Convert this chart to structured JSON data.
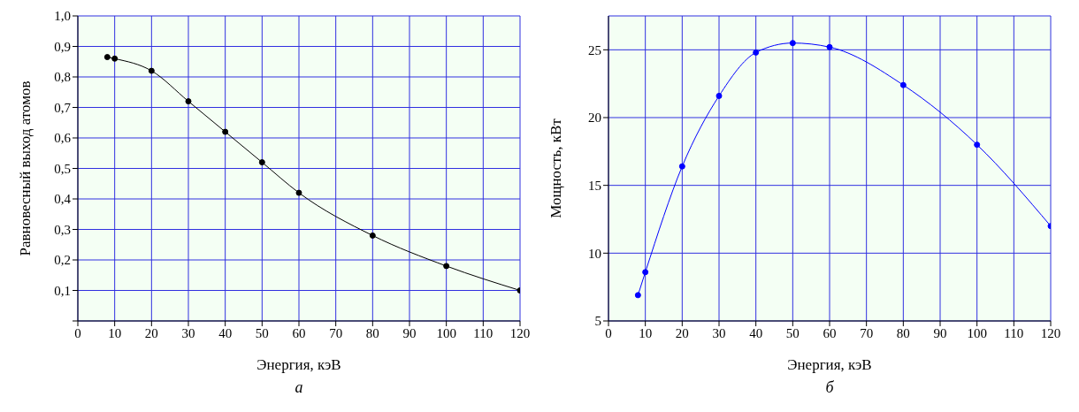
{
  "chart_data": [
    {
      "type": "line",
      "xlabel": "Энергия, кэВ",
      "ylabel": "Равновесный выход атомов",
      "annotations": [
        "а"
      ],
      "marker": "circle",
      "grid": true,
      "x": [
        8,
        10,
        20,
        30,
        40,
        50,
        60,
        80,
        100,
        120
      ],
      "series": [
        {
          "color": "#000000",
          "values": [
            0.865,
            0.86,
            0.82,
            0.72,
            0.62,
            0.52,
            0.42,
            0.28,
            0.18,
            0.1
          ]
        }
      ],
      "xlim": [
        0,
        120
      ],
      "xticks": [
        0,
        10,
        20,
        30,
        40,
        50,
        60,
        70,
        80,
        90,
        100,
        110,
        120
      ],
      "ylim": [
        0,
        1
      ],
      "yticks": [
        {
          "value": 0,
          "label": null
        },
        {
          "value": 0.1,
          "label": "0,1"
        },
        {
          "value": 0.2,
          "label": "0,2"
        },
        {
          "value": 0.3,
          "label": "0,3"
        },
        {
          "value": 0.4,
          "label": "0,4"
        },
        {
          "value": 0.5,
          "label": "0,5"
        },
        {
          "value": 0.6,
          "label": "0,6"
        },
        {
          "value": 0.7,
          "label": "0,7"
        },
        {
          "value": 0.8,
          "label": "0,8"
        },
        {
          "value": 0.9,
          "label": "0,9"
        },
        {
          "value": 1,
          "label": "1,0"
        }
      ]
    },
    {
      "type": "line",
      "xlabel": "Энергия, кэВ",
      "ylabel": "Мощность, кВт",
      "annotations": [
        "б"
      ],
      "marker": "circle",
      "grid": true,
      "x": [
        8,
        10,
        20,
        30,
        40,
        50,
        60,
        80,
        100,
        120
      ],
      "series": [
        {
          "color": "#0000ff",
          "values": [
            6.9,
            8.6,
            16.4,
            21.6,
            24.8,
            25.5,
            25.2,
            22.4,
            18,
            12
          ]
        }
      ],
      "xlim": [
        0,
        120
      ],
      "xticks": [
        0,
        10,
        20,
        30,
        40,
        50,
        60,
        70,
        80,
        90,
        100,
        110,
        120
      ],
      "ylim": [
        5,
        27.5
      ],
      "yticks": [
        5,
        10,
        15,
        20,
        25
      ]
    }
  ]
}
